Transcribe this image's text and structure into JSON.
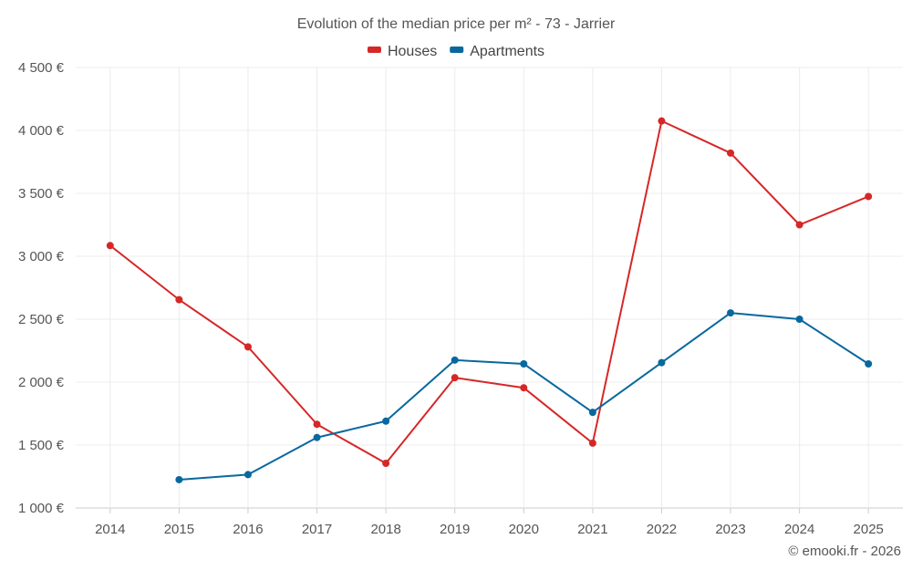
{
  "chart_data": {
    "type": "line",
    "title": "Evolution of the median price per m² - 73 - Jarrier",
    "categories": [
      "2014",
      "2015",
      "2016",
      "2017",
      "2018",
      "2019",
      "2020",
      "2021",
      "2022",
      "2023",
      "2024",
      "2025"
    ],
    "series": [
      {
        "name": "Houses",
        "color": "#d62728",
        "values": [
          3085,
          2655,
          2280,
          1665,
          1355,
          2035,
          1955,
          1515,
          4075,
          3820,
          3250,
          3475
        ]
      },
      {
        "name": "Apartments",
        "color": "#08689e",
        "values": [
          null,
          1225,
          1265,
          1560,
          1690,
          2175,
          2145,
          1760,
          2155,
          2550,
          2500,
          2145
        ]
      }
    ],
    "ylim": [
      1000,
      4500
    ],
    "yticks": [
      1000,
      1500,
      2000,
      2500,
      3000,
      3500,
      4000,
      4500
    ],
    "ytick_labels": [
      "1 000 €",
      "1 500 €",
      "2 000 €",
      "2 500 €",
      "3 000 €",
      "3 500 €",
      "4 000 €",
      "4 500 €"
    ],
    "xlabel": "",
    "ylabel": "",
    "grid": true,
    "legend_position": "top-center"
  },
  "credit": "© emooki.fr - 2026"
}
